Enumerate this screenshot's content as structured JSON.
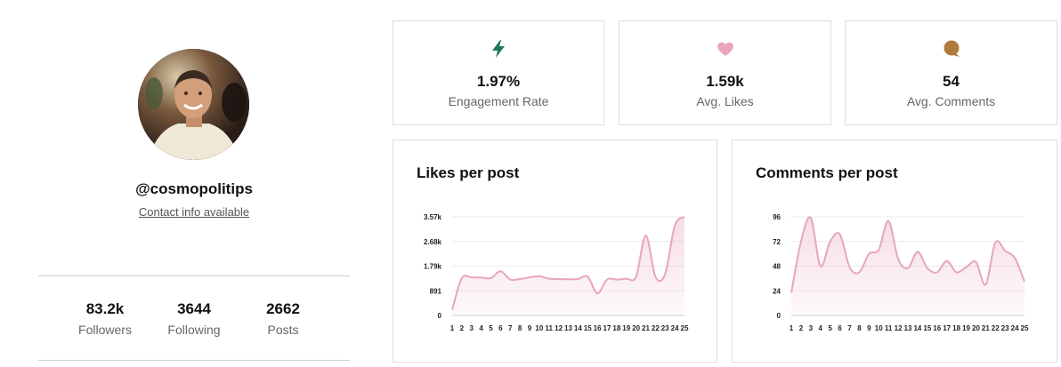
{
  "profile": {
    "handle": "@cosmopolitips",
    "contact": "Contact info available",
    "stats": [
      {
        "value": "83.2k",
        "label": "Followers"
      },
      {
        "value": "3644",
        "label": "Following"
      },
      {
        "value": "2662",
        "label": "Posts"
      }
    ]
  },
  "metrics": [
    {
      "value": "1.97%",
      "label": "Engagement Rate",
      "icon": "lightning-icon",
      "color": "#1e7a55"
    },
    {
      "value": "1.59k",
      "label": "Avg. Likes",
      "icon": "heart-icon",
      "color": "#e8a5bd"
    },
    {
      "value": "54",
      "label": "Avg. Comments",
      "icon": "comment-icon",
      "color": "#b07a3c"
    }
  ],
  "charts": {
    "likes_title": "Likes per post",
    "comments_title": "Comments per post"
  },
  "chart_data": [
    {
      "type": "area",
      "title": "Likes per post",
      "x": [
        1,
        2,
        3,
        4,
        5,
        6,
        7,
        8,
        9,
        10,
        11,
        12,
        13,
        14,
        15,
        16,
        17,
        18,
        19,
        20,
        21,
        22,
        23,
        24,
        25
      ],
      "y_ticks": [
        "0",
        "891",
        "1.79k",
        "2.68k",
        "3.57k"
      ],
      "ylim": [
        0,
        3570
      ],
      "values": [
        200,
        1350,
        1380,
        1370,
        1350,
        1600,
        1300,
        1320,
        1380,
        1420,
        1330,
        1320,
        1310,
        1320,
        1400,
        800,
        1300,
        1300,
        1330,
        1400,
        2900,
        1400,
        1500,
        3250,
        3570
      ],
      "color": "#e8a5bd",
      "grid": true
    },
    {
      "type": "area",
      "title": "Comments per post",
      "x": [
        1,
        2,
        3,
        4,
        5,
        6,
        7,
        8,
        9,
        10,
        11,
        12,
        13,
        14,
        15,
        16,
        17,
        18,
        19,
        20,
        21,
        22,
        23,
        24,
        25
      ],
      "y_ticks": [
        "0",
        "24",
        "48",
        "72",
        "96"
      ],
      "ylim": [
        0,
        96
      ],
      "values": [
        22,
        72,
        95,
        48,
        72,
        79,
        47,
        42,
        60,
        64,
        92,
        55,
        46,
        62,
        46,
        42,
        53,
        42,
        47,
        52,
        30,
        71,
        63,
        56,
        33
      ],
      "color": "#e8a5bd",
      "grid": true
    }
  ]
}
